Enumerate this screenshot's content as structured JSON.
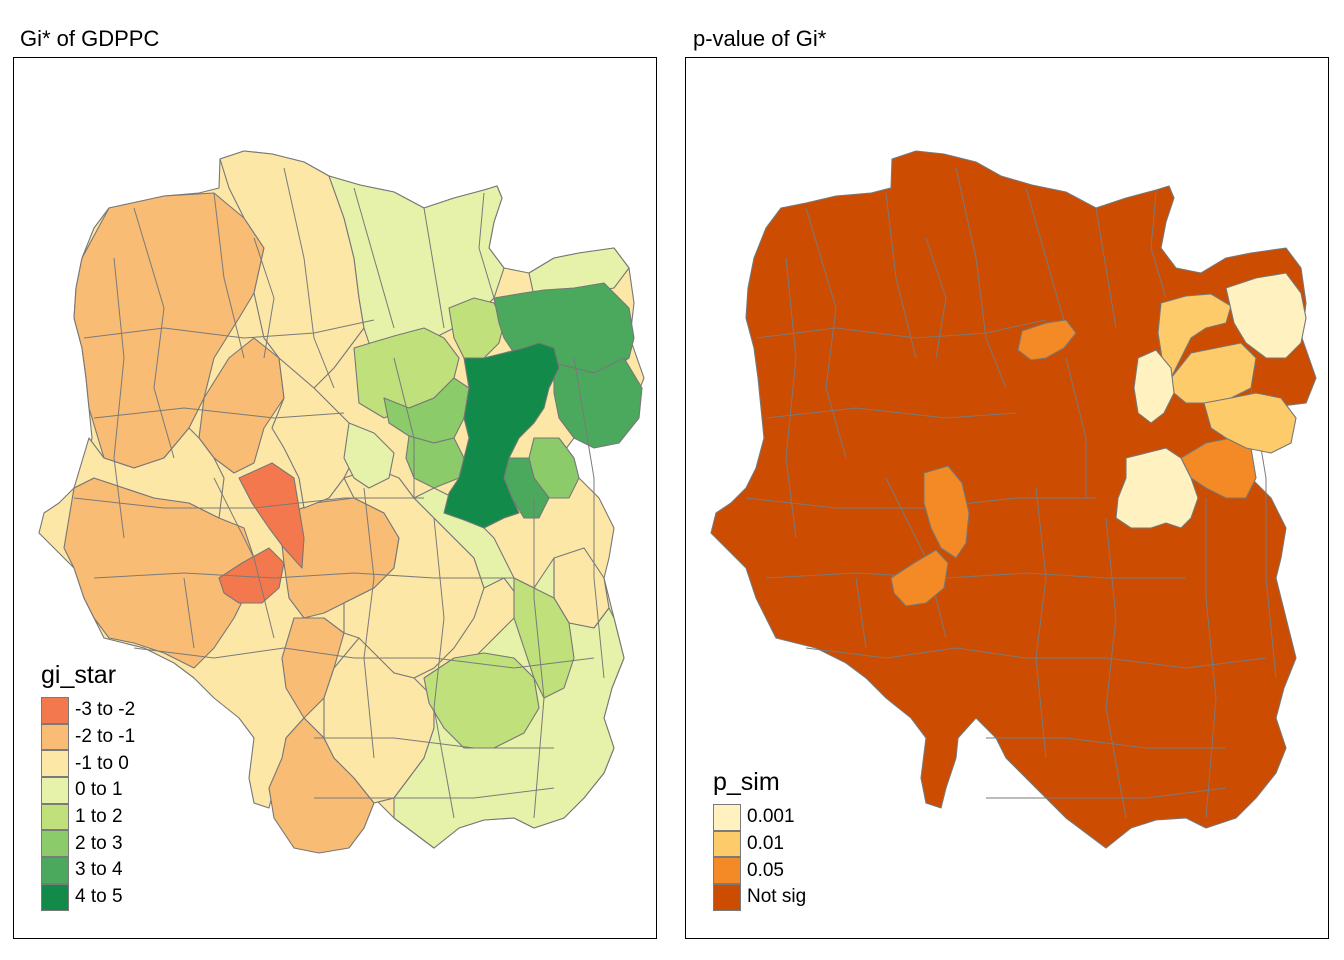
{
  "left_panel": {
    "title": "Gi* of GDPPC",
    "legend": {
      "title": "gi_star",
      "items": [
        {
          "label": "-3 to -2",
          "color": "#f4784e"
        },
        {
          "label": "-2 to -1",
          "color": "#f8bc74"
        },
        {
          "label": "-1 to 0",
          "color": "#fce7a7"
        },
        {
          "label": "0 to 1",
          "color": "#e6f2a9"
        },
        {
          "label": "1 to 2",
          "color": "#bfe07a"
        },
        {
          "label": "2 to 3",
          "color": "#8ccb6a"
        },
        {
          "label": "3 to 4",
          "color": "#4aa95c"
        },
        {
          "label": "4 to 5",
          "color": "#128a4a"
        }
      ]
    }
  },
  "right_panel": {
    "title": "p-value of Gi*",
    "legend": {
      "title": "p_sim",
      "items": [
        {
          "label": "0.001",
          "color": "#fff2c0"
        },
        {
          "label": "0.01",
          "color": "#fdcb6a"
        },
        {
          "label": "0.05",
          "color": "#f38a25"
        },
        {
          "label": "Not sig",
          "color": "#cc4c02"
        }
      ]
    }
  }
}
